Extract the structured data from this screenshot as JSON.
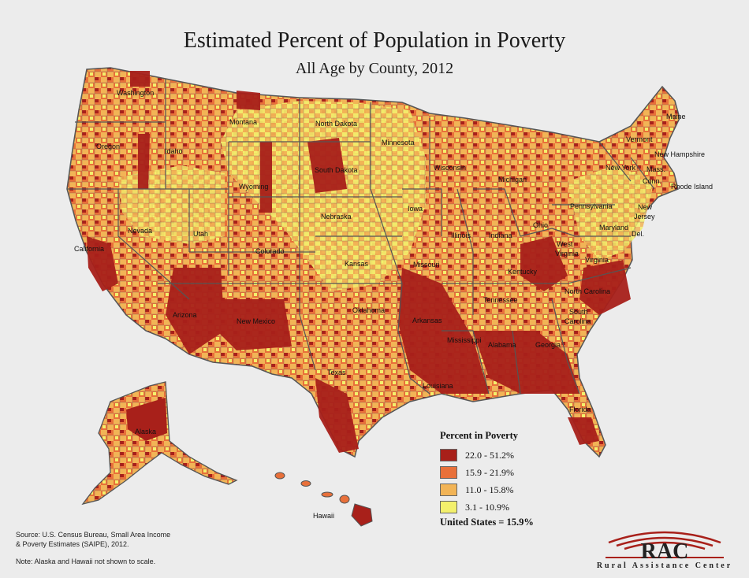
{
  "title": "Estimated Percent of Population in Poverty",
  "subtitle": "All Age by County, 2012",
  "states": {
    "washington": "Washington",
    "oregon": "Oregon",
    "california": "California",
    "idaho": "Idaho",
    "nevada": "Nevada",
    "montana": "Montana",
    "wyoming": "Wyoming",
    "utah": "Utah",
    "arizona": "Arizona",
    "colorado": "Colorado",
    "new_mexico": "New Mexico",
    "north_dakota": "North Dakota",
    "south_dakota": "South Dakota",
    "nebraska": "Nebraska",
    "kansas": "Kansas",
    "oklahoma": "Oklahoma",
    "texas": "Texas",
    "minnesota": "Minnesota",
    "iowa": "Iowa",
    "missouri": "Missouri",
    "arkansas": "Arkansas",
    "louisiana": "Louisiana",
    "wisconsin": "Wisconsin",
    "illinois": "Illinois",
    "michigan": "Michigan",
    "indiana": "Indiana",
    "ohio": "Ohio",
    "kentucky": "Kentucky",
    "tennessee": "Tennessee",
    "mississippi": "Mississippi",
    "alabama": "Alabama",
    "georgia": "Georgia",
    "florida": "Florida",
    "south_carolina_1": "South",
    "south_carolina_2": "Carolina",
    "north_carolina": "North Carolina",
    "virginia": "Virginia",
    "west_virginia_1": "West",
    "west_virginia_2": "Virginia",
    "pennsylvania": "Pennsylvania",
    "new_york": "New York",
    "maryland": "Maryland",
    "delaware": "Del.",
    "new_jersey_1": "New",
    "new_jersey_2": "Jersey",
    "connecticut": "Conn.",
    "rhode_island": "Rhode Island",
    "massachusetts": "Mass.",
    "vermont": "Vermont",
    "new_hampshire": "New Hampshire",
    "maine": "Maine",
    "alaska": "Alaska",
    "hawaii": "Hawaii"
  },
  "legend": {
    "title": "Percent in Poverty",
    "items": [
      {
        "label": "22.0 - 51.2%",
        "color": "#a8201a"
      },
      {
        "label": "15.9 - 21.9%",
        "color": "#e8703a"
      },
      {
        "label": "11.0 - 15.8%",
        "color": "#f2b456"
      },
      {
        "label": "3.1 - 10.9%",
        "color": "#f3f06c"
      }
    ]
  },
  "us_total": "United States = 15.9%",
  "source_line1": "Source:  U.S. Census Bureau, Small Area Income",
  "source_line2": "& Poverty Estimates (SAIPE), 2012.",
  "note": "Note: Alaska and Hawaii not shown to scale.",
  "logo": {
    "mark": "RAC",
    "name": "Rural Assistance Center"
  }
}
